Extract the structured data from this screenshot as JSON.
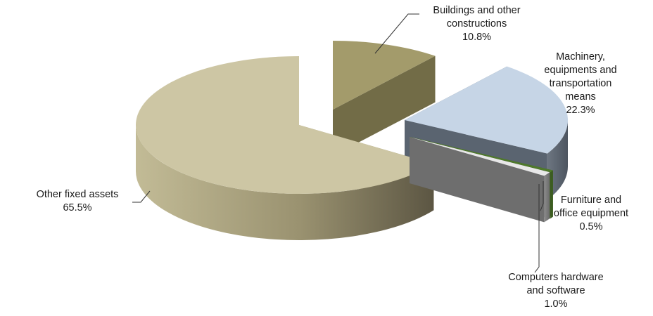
{
  "chart_data": {
    "type": "pie",
    "title": "",
    "series": [
      {
        "values": [
          {
            "label_lines": [
              "Buildings and other",
              "constructions"
            ],
            "label": "Buildings and other constructions",
            "value": 10.8,
            "pct": "10.8%",
            "color": "#a39b6b",
            "side": "#726c47"
          },
          {
            "label_lines": [
              "Machinery,",
              "equipments and",
              "transportation",
              "means"
            ],
            "label": "Machinery, equipments and transportation means",
            "value": 22.3,
            "pct": "22.3%",
            "color": "#c6d5e6",
            "side": "#5a6470"
          },
          {
            "label_lines": [
              "Furniture and",
              "office equipment"
            ],
            "label": "Furniture and office equipment",
            "value": 0.5,
            "pct": "0.5%",
            "color": "#4f7a2b",
            "side": "#3c5d20"
          },
          {
            "label_lines": [
              "Computers hardware",
              "and software"
            ],
            "label": "Computers hardware and software",
            "value": 1.0,
            "pct": "1.0%",
            "color": "#e8e8e8",
            "side": "#6e6e6e"
          },
          {
            "label_lines": [
              "Other fixed assets"
            ],
            "label": "Other fixed assets",
            "value": 65.5,
            "pct": "65.5%",
            "color": "#cdc6a4",
            "side": "#9c946d"
          }
        ]
      }
    ],
    "legend": "none",
    "data_labels": "outside with leader lines"
  }
}
